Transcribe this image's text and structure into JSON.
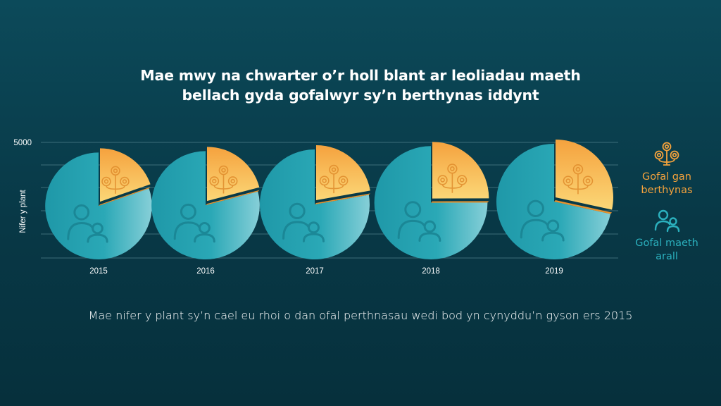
{
  "title": {
    "line1": "Mae mwy na chwarter o’r holl blant ar leoliadau maeth",
    "line2": "bellach gyda gofalwyr sy’n berthynas iddynt"
  },
  "subtitle": "Mae nifer y plant sy’n cael eu rhoi o dan ofal perthnasau wedi bod yn cynyddu’n gyson ers 2015",
  "legend": {
    "kinship": {
      "label_line1": "Gofal gan",
      "label_line2": "berthynas",
      "icon": "family-tree-icon",
      "color": "#f4a23c"
    },
    "other": {
      "label_line1": "Gofal maeth",
      "label_line2": "arall",
      "icon": "people-icon",
      "color": "#2bb0bd"
    }
  },
  "chart_data": {
    "type": "pie",
    "ylabel": "Nifer y plant",
    "y_ticks": [
      "5000"
    ],
    "categories": [
      "2015",
      "2016",
      "2017",
      "2018",
      "2019"
    ],
    "series": [
      {
        "name": "Gofal gan berthynas",
        "values": [
          870,
          950,
          1040,
          1240,
          1470
        ]
      },
      {
        "name": "Gofal maeth arall",
        "values": [
          3550,
          3590,
          3640,
          3730,
          3700
        ]
      }
    ],
    "colors": {
      "kinship": "#f4a23c",
      "other": "#2aa4b4"
    }
  }
}
